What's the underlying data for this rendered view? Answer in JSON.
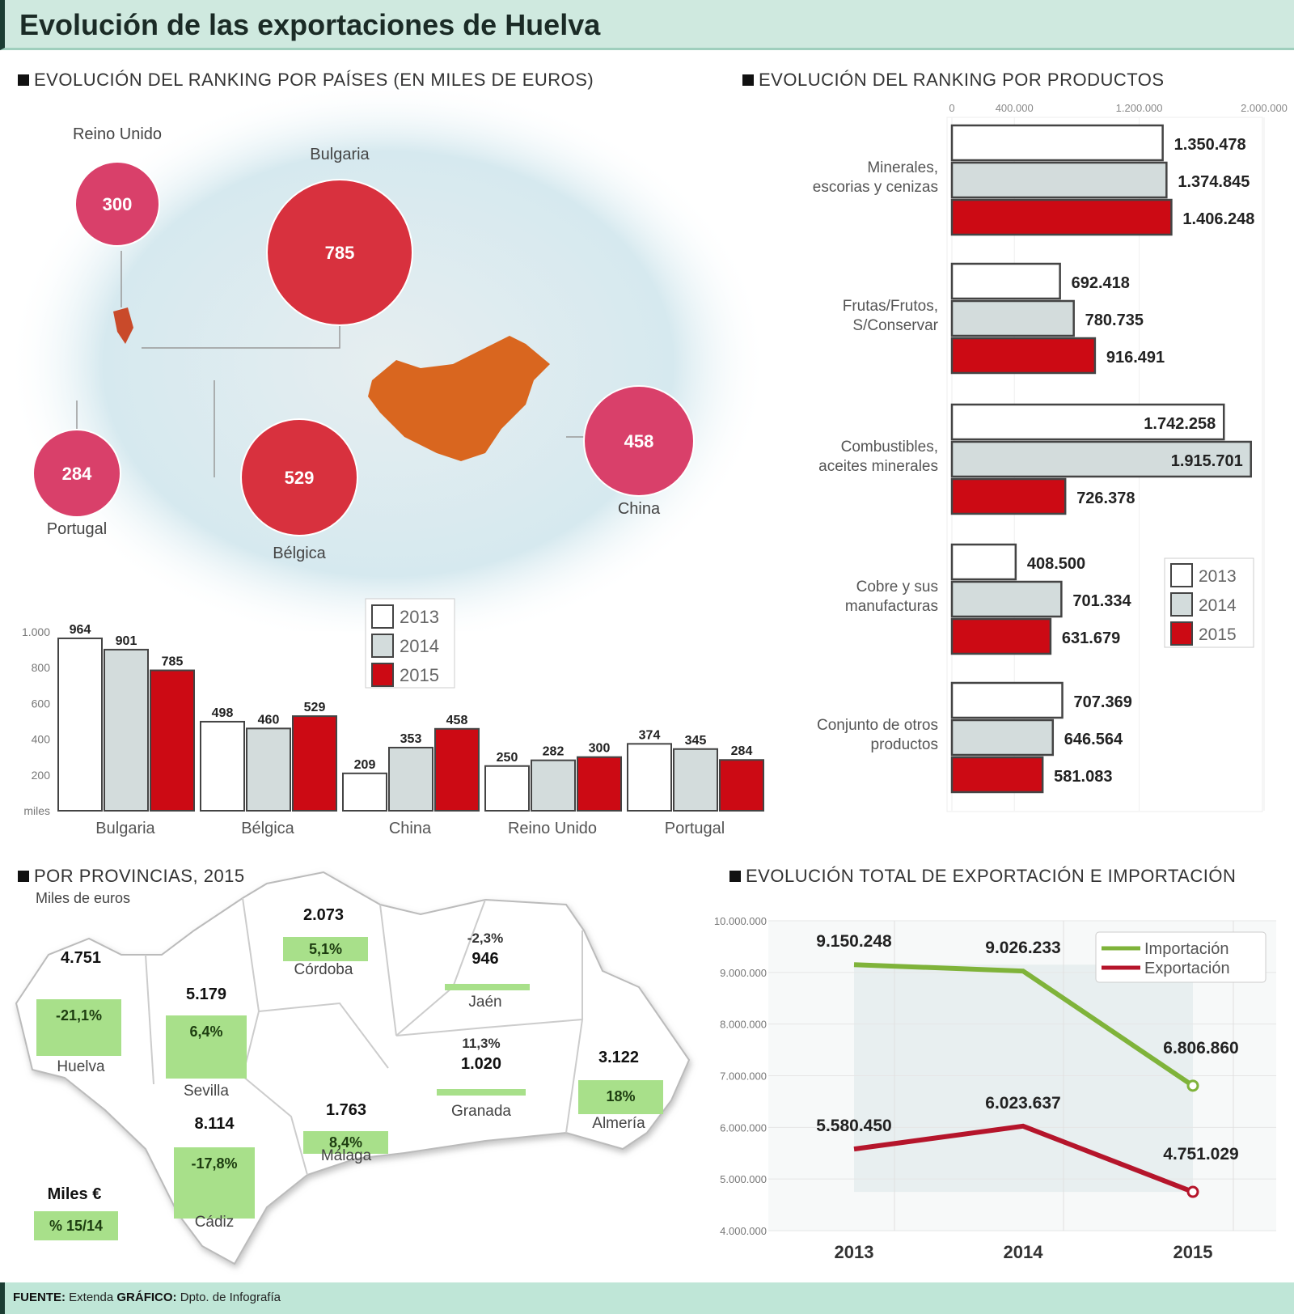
{
  "title": "Evolución de las exportaciones de Huelva",
  "sections": {
    "countries": "EVOLUCIÓN DEL RANKING POR PAÍSES (EN MILES DE EUROS)",
    "products": "EVOLUCIÓN DEL RANKING POR PRODUCTOS",
    "provinces": "POR PROVINCIAS, 2015",
    "total": "EVOLUCIÓN TOTAL DE EXPORTACIÓN E IMPORTACIÓN"
  },
  "map_bubbles": [
    {
      "country": "Reino Unido",
      "value": "300"
    },
    {
      "country": "Bulgaria",
      "value": "785"
    },
    {
      "country": "Portugal",
      "value": "284"
    },
    {
      "country": "Bélgica",
      "value": "529"
    },
    {
      "country": "China",
      "value": "458"
    }
  ],
  "colors": {
    "y2013": "#ffffff",
    "y2014": "#d3dcdc",
    "y2015": "#cc0a14",
    "import": "#7fb33a",
    "export": "#b5152b",
    "bubble": "#d9406a",
    "mint": "#cfe9df"
  },
  "chart_data": [
    {
      "type": "bar",
      "title": "EVOLUCIÓN DEL RANKING POR PAÍSES (EN MILES DE EUROS)",
      "categories": [
        "Bulgaria",
        "Bélgica",
        "China",
        "Reino Unido",
        "Portugal"
      ],
      "series": [
        {
          "name": "2013",
          "values": [
            964,
            498,
            209,
            250,
            374
          ]
        },
        {
          "name": "2014",
          "values": [
            901,
            460,
            353,
            282,
            345
          ]
        },
        {
          "name": "2015",
          "values": [
            785,
            529,
            458,
            300,
            284
          ]
        }
      ],
      "yticks": [
        "miles",
        "200",
        "400",
        "600",
        "800",
        "1.000"
      ],
      "ylim": [
        0,
        1000
      ],
      "legend": "top-right"
    },
    {
      "type": "bar",
      "orientation": "horizontal",
      "title": "EVOLUCIÓN DEL RANKING POR PRODUCTOS",
      "categories": [
        "Minerales, escorias y cenizas",
        "Frutas/Frutos, S/Conservar",
        "Combustibles, aceites minerales",
        "Cobre y sus manufacturas",
        "Conjunto de otros productos"
      ],
      "series": [
        {
          "name": "2013",
          "values": [
            1350478,
            692418,
            1742258,
            408500,
            707369
          ],
          "labels": [
            "1.350.478",
            "692.418",
            "1.742.258",
            "408.500",
            "707.369"
          ]
        },
        {
          "name": "2014",
          "values": [
            1374845,
            780735,
            1915701,
            701334,
            646564
          ],
          "labels": [
            "1.374.845",
            "780.735",
            "1.915.701",
            "701.334",
            "646.564"
          ]
        },
        {
          "name": "2015",
          "values": [
            1406248,
            916491,
            726378,
            631679,
            581083
          ],
          "labels": [
            "1.406.248",
            "916.491",
            "726.378",
            "631.679",
            "581.083"
          ]
        }
      ],
      "xticks": [
        "0",
        "400.000",
        "1.200.000",
        "2.000.000"
      ],
      "xlim": [
        0,
        2000000
      ],
      "legend": "right"
    },
    {
      "type": "line",
      "title": "EVOLUCIÓN TOTAL DE EXPORTACIÓN E IMPORTACIÓN",
      "x": [
        "2013",
        "2014",
        "2015"
      ],
      "series": [
        {
          "name": "Importación",
          "values": [
            9150248,
            9026233,
            6806860
          ],
          "labels": [
            "9.150.248",
            "9.026.233",
            "6.806.860"
          ]
        },
        {
          "name": "Exportación",
          "values": [
            5580450,
            6023637,
            4751029
          ],
          "labels": [
            "5.580.450",
            "6.023.637",
            "4.751.029"
          ]
        }
      ],
      "yticks": [
        "4.000.000",
        "5.000.000",
        "6.000.000",
        "7.000.000",
        "8.000.000",
        "9.000.000",
        "10.000.000"
      ],
      "ylim": [
        4000000,
        10000000
      ],
      "legend": "top-right"
    }
  ],
  "provinces": {
    "unit": "Miles de euros",
    "items": [
      {
        "name": "Huelva",
        "value": "4.751",
        "change": "-21,1%"
      },
      {
        "name": "Sevilla",
        "value": "5.179",
        "change": "6,4%"
      },
      {
        "name": "Córdoba",
        "value": "2.073",
        "change": "5,1%"
      },
      {
        "name": "Jaén",
        "value": "946",
        "change": "-2,3%"
      },
      {
        "name": "Granada",
        "value": "1.020",
        "change": "11,3%"
      },
      {
        "name": "Almería",
        "value": "3.122",
        "change": "18%"
      },
      {
        "name": "Málaga",
        "value": "1.763",
        "change": "8,4%"
      },
      {
        "name": "Cádiz",
        "value": "8.114",
        "change": "-17,8%"
      }
    ],
    "legend": {
      "value": "Miles €",
      "change": "% 15/14"
    }
  },
  "footer": {
    "source_label": "FUENTE:",
    "source": "Extenda",
    "graphic_label": "GRÁFICO:",
    "graphic": "Dpto. de Infografía"
  }
}
